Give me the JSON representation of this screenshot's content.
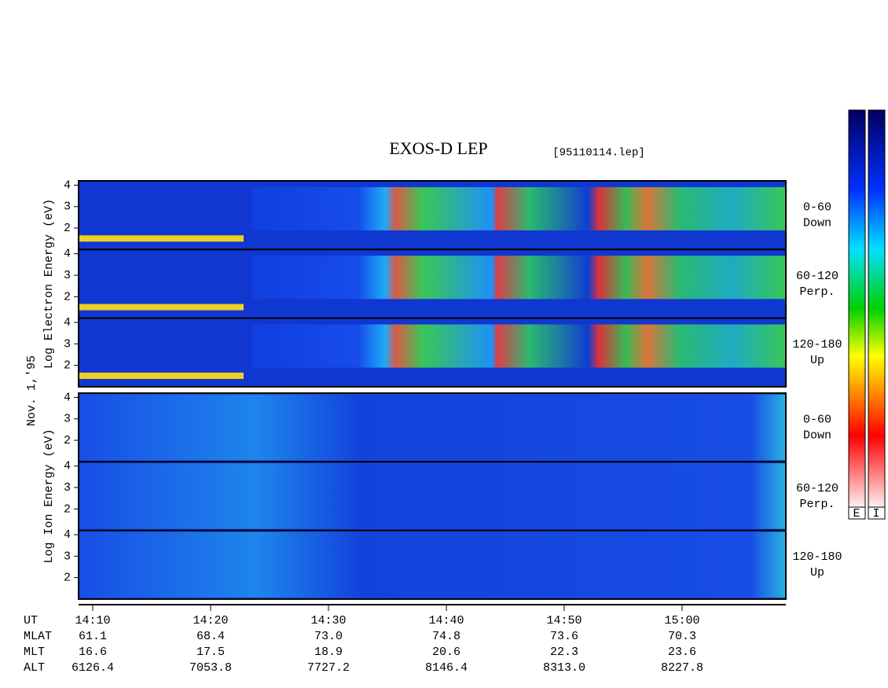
{
  "chart_data": {
    "type": "spectrogram",
    "title": "EXOS-D LEP",
    "subtitle": "[95110114.lep]",
    "date_label": "Nov. 1,'95",
    "groups": [
      {
        "ylabel": "Log Electron Energy (eV)",
        "panels": [
          {
            "pitch": "0-60",
            "direction": "Down"
          },
          {
            "pitch": "60-120",
            "direction": "Perp."
          },
          {
            "pitch": "120-180",
            "direction": "Up"
          }
        ]
      },
      {
        "ylabel": "Log Ion Energy (eV)",
        "panels": [
          {
            "pitch": "0-60",
            "direction": "Down"
          },
          {
            "pitch": "60-120",
            "direction": "Perp."
          },
          {
            "pitch": "120-180",
            "direction": "Up"
          }
        ]
      }
    ],
    "ylim": [
      1,
      4.2
    ],
    "yticks": [
      2,
      3,
      4
    ],
    "xlim": [
      848.8,
      908.8
    ],
    "xticks": [
      {
        "value": 850,
        "label": "14:10"
      },
      {
        "value": 860,
        "label": "14:20"
      },
      {
        "value": 870,
        "label": "14:30"
      },
      {
        "value": 880,
        "label": "14:40"
      },
      {
        "value": 890,
        "label": "14:50"
      },
      {
        "value": 900,
        "label": "15:00"
      }
    ],
    "xaxis_label": "UT",
    "ephemeris": [
      {
        "name": "MLAT",
        "values": [
          "61.1",
          "68.4",
          "73.0",
          "74.8",
          "73.6",
          "70.3"
        ]
      },
      {
        "name": "MLT",
        "values": [
          "16.6",
          "17.5",
          "18.9",
          "20.6",
          "22.3",
          "23.6"
        ]
      },
      {
        "name": "ALT",
        "values": [
          "6126.4",
          "7053.8",
          "7727.2",
          "8146.4",
          "8313.0",
          "8227.8"
        ]
      }
    ],
    "colorbar_labels": [
      "E",
      "I"
    ]
  }
}
